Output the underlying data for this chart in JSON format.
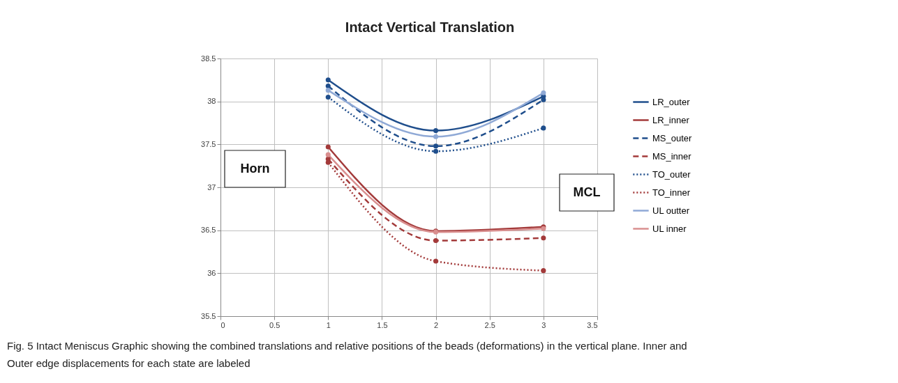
{
  "chart_data": {
    "type": "line",
    "title": "Intact Vertical Translation",
    "x": [
      1,
      2,
      3
    ],
    "series": [
      {
        "name": "LR_outer",
        "color": "#1f4e8c",
        "line_style": "solid",
        "values": [
          38.25,
          37.66,
          38.06
        ]
      },
      {
        "name": "LR_inner",
        "color": "#a33a3a",
        "line_style": "solid",
        "values": [
          37.47,
          36.49,
          36.54
        ]
      },
      {
        "name": "MS_outer",
        "color": "#1f4e8c",
        "line_style": "dashed",
        "values": [
          38.18,
          37.48,
          38.02
        ]
      },
      {
        "name": "MS_inner",
        "color": "#a33a3a",
        "line_style": "dashed",
        "values": [
          37.33,
          36.38,
          36.41
        ]
      },
      {
        "name": "TO_outer",
        "color": "#1f4e8c",
        "line_style": "dotted",
        "values": [
          38.05,
          37.42,
          37.69
        ]
      },
      {
        "name": "TO_inner",
        "color": "#a33a3a",
        "line_style": "dotted",
        "values": [
          37.29,
          36.14,
          36.03
        ]
      },
      {
        "name": "UL outter",
        "color": "#8fa9d6",
        "line_style": "solid",
        "values": [
          38.13,
          37.59,
          38.1
        ]
      },
      {
        "name": "UL inner",
        "color": "#d98f8f",
        "line_style": "solid",
        "values": [
          37.38,
          36.48,
          36.52
        ]
      }
    ],
    "xlim": [
      0,
      3.5
    ],
    "xticks": [
      0,
      0.5,
      1,
      1.5,
      2,
      2.5,
      3,
      3.5
    ],
    "ylim": [
      35.5,
      38.5
    ],
    "yticks": [
      35.5,
      36,
      36.5,
      37,
      37.5,
      38,
      38.5
    ],
    "grid": true,
    "legend": "right",
    "marker": "circle",
    "annotations": [
      "Horn",
      "MCL",
      "Fig. 5 Intact Meniscus Graphic showing the combined translations and relative positions of the beads (deformations) in the vertical plane. Inner and Outer edge displacements for each state are labeled"
    ]
  }
}
